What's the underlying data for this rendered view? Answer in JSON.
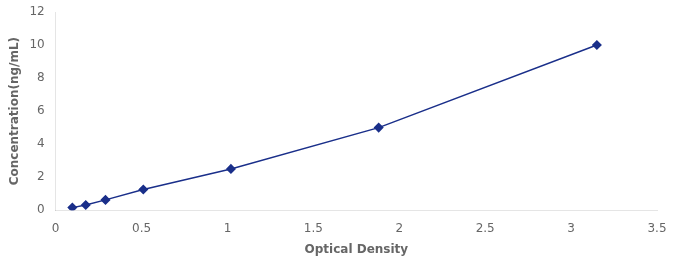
{
  "chart_data": {
    "type": "line",
    "x": [
      0.097,
      0.175,
      0.29,
      0.51,
      1.02,
      1.88,
      3.15
    ],
    "values": [
      0.156,
      0.312,
      0.625,
      1.25,
      2.5,
      5.0,
      10.0
    ],
    "color": "#1a2f8a",
    "marker": "diamond",
    "xlabel": "Optical Density",
    "ylabel": "Concentration(ng/mL)",
    "xlim": [
      0,
      3.5
    ],
    "ylim": [
      0,
      12
    ],
    "xticks": [
      0,
      0.5,
      1,
      1.5,
      2,
      2.5,
      3,
      3.5
    ],
    "yticks": [
      0,
      2,
      4,
      6,
      8,
      10,
      12
    ],
    "grid": false
  }
}
